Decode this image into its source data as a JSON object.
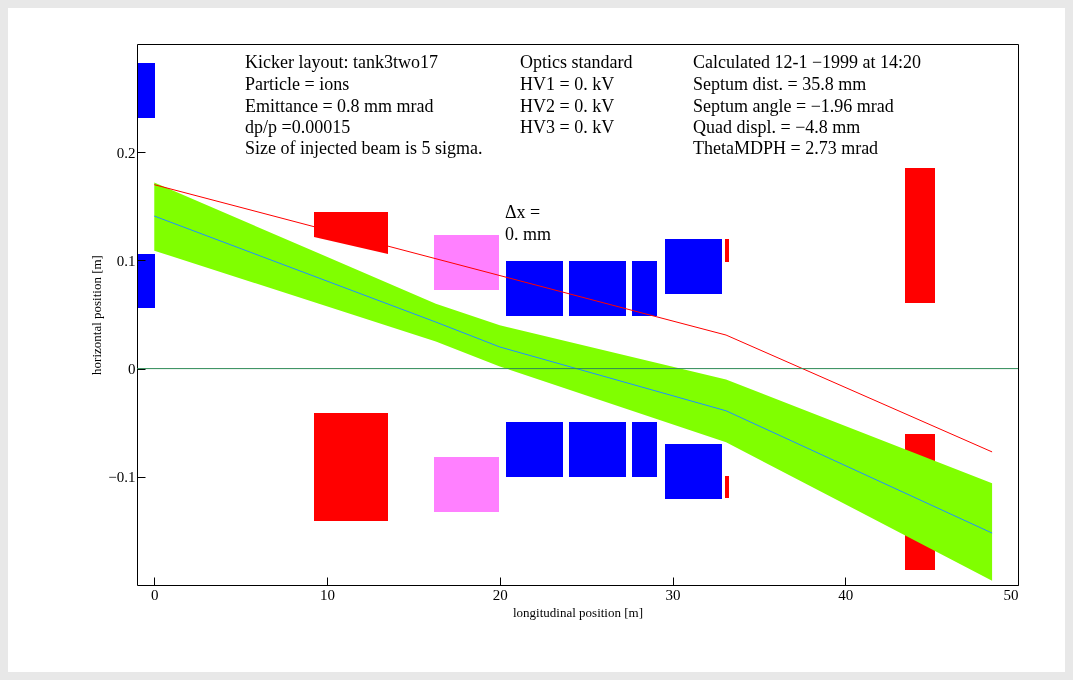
{
  "chart_data": {
    "type": "line",
    "xlabel": "longitudinal position [m]",
    "ylabel": "horizontal position [m]",
    "xlim": [
      -1,
      50
    ],
    "ylim": [
      -0.2,
      0.3
    ],
    "xticks": [
      0,
      10,
      20,
      30,
      40,
      50
    ],
    "yticks": [
      -0.1,
      0,
      0.1,
      0.2
    ],
    "grid": false,
    "marker": "none",
    "series": [
      {
        "color": "#1e90ff",
        "x": [
          0,
          16.3,
          20,
          33.1,
          48.5
        ],
        "values": [
          0.141,
          0.043,
          0.02,
          -0.039,
          -0.152
        ],
        "lower": [
          0.109,
          0.025,
          0.002,
          -0.068,
          -0.196
        ],
        "upper": [
          0.172,
          0.06,
          0.04,
          -0.01,
          -0.106
        ]
      },
      {
        "color": "#ff0000",
        "x": [
          0,
          33.1,
          48.5
        ],
        "values": [
          0.17,
          0.031,
          -0.077
        ]
      }
    ],
    "ref_lines": [
      {
        "axis": "y",
        "value": 0,
        "color": "#2e8b57"
      }
    ],
    "annotations": [
      "Kicker layout: tank3two17",
      "Particle = ions",
      "Emittance = 0.8 mm mrad",
      "dp/p =0.00015",
      "Size of injected beam is 5 sigma.",
      "Optics standard",
      "HV1 = 0. kV",
      "HV2 = 0. kV",
      "HV3 = 0. kV",
      "Calculated 12-1 −1999 at 14:20",
      "Septum dist. = 35.8 mm",
      "Septum angle = −1.96 mrad",
      "Quad displ. = −4.8 mm",
      "ThetaMDPH = 2.73 mrad",
      "Δx =",
      "0. mm"
    ]
  }
}
